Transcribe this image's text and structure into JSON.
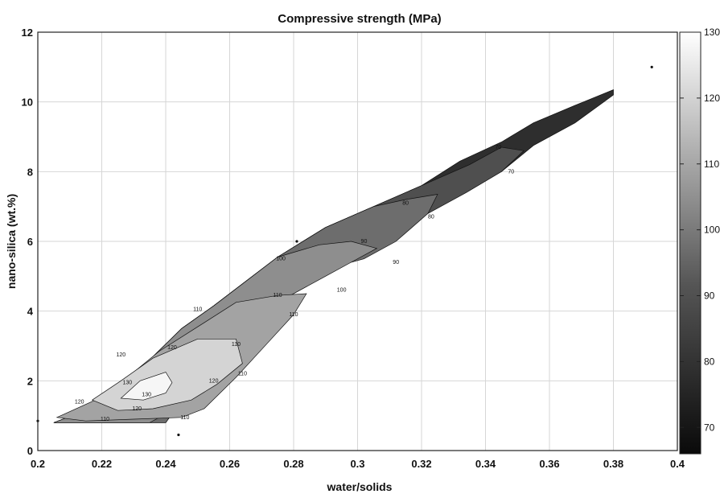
{
  "chart_data": {
    "type": "contour",
    "title": "Compressive strength (MPa)",
    "xlabel": "water/solids",
    "ylabel": "nano-silica (wt.%)",
    "xlim": [
      0.2,
      0.4
    ],
    "ylim": [
      0,
      12
    ],
    "xticks": [
      "0.2",
      "0.22",
      "0.24",
      "0.26",
      "0.28",
      "0.3",
      "0.32",
      "0.34",
      "0.36",
      "0.38",
      "0.4"
    ],
    "yticks": [
      "0",
      "2",
      "4",
      "6",
      "8",
      "10",
      "12"
    ],
    "grid": true,
    "colorbar": {
      "range": [
        66,
        130
      ],
      "ticks": [
        "70",
        "80",
        "90",
        "100",
        "110",
        "120",
        "130"
      ],
      "colormap": "gray"
    },
    "regions": [
      {
        "level": 75,
        "color": "#2e2e2e",
        "points": [
          [
            0.205,
            0.8
          ],
          [
            0.215,
            1.15
          ],
          [
            0.225,
            1.8
          ],
          [
            0.235,
            2.6
          ],
          [
            0.245,
            3.5
          ],
          [
            0.255,
            4.15
          ],
          [
            0.265,
            4.85
          ],
          [
            0.275,
            5.55
          ],
          [
            0.29,
            6.4
          ],
          [
            0.305,
            7.0
          ],
          [
            0.32,
            7.6
          ],
          [
            0.332,
            8.3
          ],
          [
            0.345,
            8.85
          ],
          [
            0.355,
            9.4
          ],
          [
            0.368,
            9.9
          ],
          [
            0.38,
            10.35
          ],
          [
            0.38,
            10.2
          ],
          [
            0.368,
            9.4
          ],
          [
            0.355,
            8.75
          ],
          [
            0.345,
            8.0
          ],
          [
            0.332,
            7.5
          ],
          [
            0.318,
            6.9
          ],
          [
            0.305,
            6.2
          ],
          [
            0.29,
            5.5
          ],
          [
            0.275,
            4.5
          ],
          [
            0.262,
            3.6
          ],
          [
            0.25,
            2.1
          ],
          [
            0.24,
            0.8
          ],
          [
            0.22,
            0.8
          ],
          [
            0.205,
            0.8
          ]
        ]
      },
      {
        "level": 85,
        "color": "#4f4f4f",
        "points": [
          [
            0.205,
            0.8
          ],
          [
            0.215,
            1.15
          ],
          [
            0.225,
            1.8
          ],
          [
            0.235,
            2.6
          ],
          [
            0.245,
            3.5
          ],
          [
            0.255,
            4.15
          ],
          [
            0.265,
            4.85
          ],
          [
            0.275,
            5.55
          ],
          [
            0.29,
            6.4
          ],
          [
            0.305,
            7.0
          ],
          [
            0.32,
            7.6
          ],
          [
            0.335,
            8.2
          ],
          [
            0.345,
            8.7
          ],
          [
            0.352,
            8.6
          ],
          [
            0.345,
            8.0
          ],
          [
            0.334,
            7.4
          ],
          [
            0.32,
            6.7
          ],
          [
            0.305,
            6.0
          ],
          [
            0.29,
            5.4
          ],
          [
            0.275,
            4.5
          ],
          [
            0.262,
            3.6
          ],
          [
            0.25,
            2.1
          ],
          [
            0.24,
            0.8
          ],
          [
            0.22,
            0.8
          ],
          [
            0.205,
            0.8
          ]
        ]
      },
      {
        "level": 95,
        "color": "#6d6d6d",
        "points": [
          [
            0.205,
            0.8
          ],
          [
            0.215,
            1.15
          ],
          [
            0.225,
            1.8
          ],
          [
            0.235,
            2.6
          ],
          [
            0.245,
            3.5
          ],
          [
            0.255,
            4.15
          ],
          [
            0.265,
            4.85
          ],
          [
            0.275,
            5.55
          ],
          [
            0.29,
            6.4
          ],
          [
            0.305,
            7.0
          ],
          [
            0.315,
            7.2
          ],
          [
            0.325,
            7.35
          ],
          [
            0.322,
            6.8
          ],
          [
            0.312,
            6.0
          ],
          [
            0.302,
            5.5
          ],
          [
            0.29,
            5.2
          ],
          [
            0.275,
            4.5
          ],
          [
            0.262,
            3.6
          ],
          [
            0.25,
            2.1
          ],
          [
            0.24,
            0.8
          ],
          [
            0.22,
            0.8
          ],
          [
            0.205,
            0.8
          ]
        ]
      },
      {
        "level": 105,
        "color": "#8e8e8e",
        "points": [
          [
            0.205,
            0.8
          ],
          [
            0.215,
            1.15
          ],
          [
            0.225,
            1.8
          ],
          [
            0.235,
            2.6
          ],
          [
            0.245,
            3.5
          ],
          [
            0.255,
            4.15
          ],
          [
            0.265,
            4.85
          ],
          [
            0.275,
            5.55
          ],
          [
            0.288,
            5.9
          ],
          [
            0.298,
            6.0
          ],
          [
            0.306,
            5.8
          ],
          [
            0.298,
            5.4
          ],
          [
            0.29,
            5.0
          ],
          [
            0.278,
            4.4
          ],
          [
            0.265,
            3.5
          ],
          [
            0.255,
            2.3
          ],
          [
            0.245,
            1.3
          ],
          [
            0.235,
            0.8
          ],
          [
            0.22,
            0.8
          ],
          [
            0.205,
            0.8
          ]
        ]
      },
      {
        "level": 112,
        "color": "#a3a3a3",
        "points": [
          [
            0.206,
            0.95
          ],
          [
            0.218,
            1.45
          ],
          [
            0.228,
            2.1
          ],
          [
            0.238,
            2.85
          ],
          [
            0.25,
            3.55
          ],
          [
            0.262,
            4.25
          ],
          [
            0.275,
            4.45
          ],
          [
            0.284,
            4.5
          ],
          [
            0.28,
            3.9
          ],
          [
            0.272,
            3.1
          ],
          [
            0.262,
            2.1
          ],
          [
            0.252,
            1.2
          ],
          [
            0.245,
            0.95
          ],
          [
            0.23,
            0.9
          ],
          [
            0.215,
            0.85
          ],
          [
            0.206,
            0.95
          ]
        ]
      },
      {
        "level": 120,
        "color": "#d4d4d4",
        "points": [
          [
            0.217,
            1.45
          ],
          [
            0.226,
            2.0
          ],
          [
            0.236,
            2.65
          ],
          [
            0.25,
            3.2
          ],
          [
            0.262,
            3.2
          ],
          [
            0.264,
            2.5
          ],
          [
            0.256,
            1.9
          ],
          [
            0.248,
            1.45
          ],
          [
            0.236,
            1.2
          ],
          [
            0.225,
            1.15
          ],
          [
            0.217,
            1.45
          ]
        ]
      },
      {
        "level": 128,
        "color": "#f6f6f6",
        "points": [
          [
            0.226,
            1.5
          ],
          [
            0.232,
            2.0
          ],
          [
            0.24,
            2.25
          ],
          [
            0.242,
            1.95
          ],
          [
            0.24,
            1.65
          ],
          [
            0.233,
            1.45
          ],
          [
            0.226,
            1.5
          ]
        ]
      }
    ],
    "contour_labels": [
      {
        "text": "110",
        "at": [
          0.221,
          0.9
        ]
      },
      {
        "text": "120",
        "at": [
          0.231,
          1.2
        ]
      },
      {
        "text": "110",
        "at": [
          0.246,
          0.95
        ]
      },
      {
        "text": "120",
        "at": [
          0.213,
          1.4
        ]
      },
      {
        "text": "130",
        "at": [
          0.228,
          1.95
        ]
      },
      {
        "text": "130",
        "at": [
          0.234,
          1.6
        ]
      },
      {
        "text": "120",
        "at": [
          0.226,
          2.75
        ]
      },
      {
        "text": "120",
        "at": [
          0.242,
          2.95
        ]
      },
      {
        "text": "120",
        "at": [
          0.255,
          2.0
        ]
      },
      {
        "text": "110",
        "at": [
          0.25,
          4.05
        ]
      },
      {
        "text": "110",
        "at": [
          0.262,
          3.05
        ]
      },
      {
        "text": "110",
        "at": [
          0.275,
          4.45
        ]
      },
      {
        "text": "110",
        "at": [
          0.28,
          3.9
        ]
      },
      {
        "text": "110",
        "at": [
          0.264,
          2.2
        ]
      },
      {
        "text": "100",
        "at": [
          0.276,
          5.5
        ]
      },
      {
        "text": "100",
        "at": [
          0.295,
          4.6
        ]
      },
      {
        "text": "90",
        "at": [
          0.302,
          6.0
        ]
      },
      {
        "text": "90",
        "at": [
          0.312,
          5.4
        ]
      },
      {
        "text": "80",
        "at": [
          0.315,
          7.1
        ]
      },
      {
        "text": "80",
        "at": [
          0.323,
          6.7
        ]
      },
      {
        "text": "70",
        "at": [
          0.344,
          8.7
        ]
      },
      {
        "text": "70",
        "at": [
          0.348,
          8.0
        ]
      }
    ],
    "data_points": [
      [
        0.2,
        0.85
      ],
      [
        0.244,
        0.45
      ],
      [
        0.281,
        6.0
      ],
      [
        0.392,
        11.0
      ]
    ]
  }
}
